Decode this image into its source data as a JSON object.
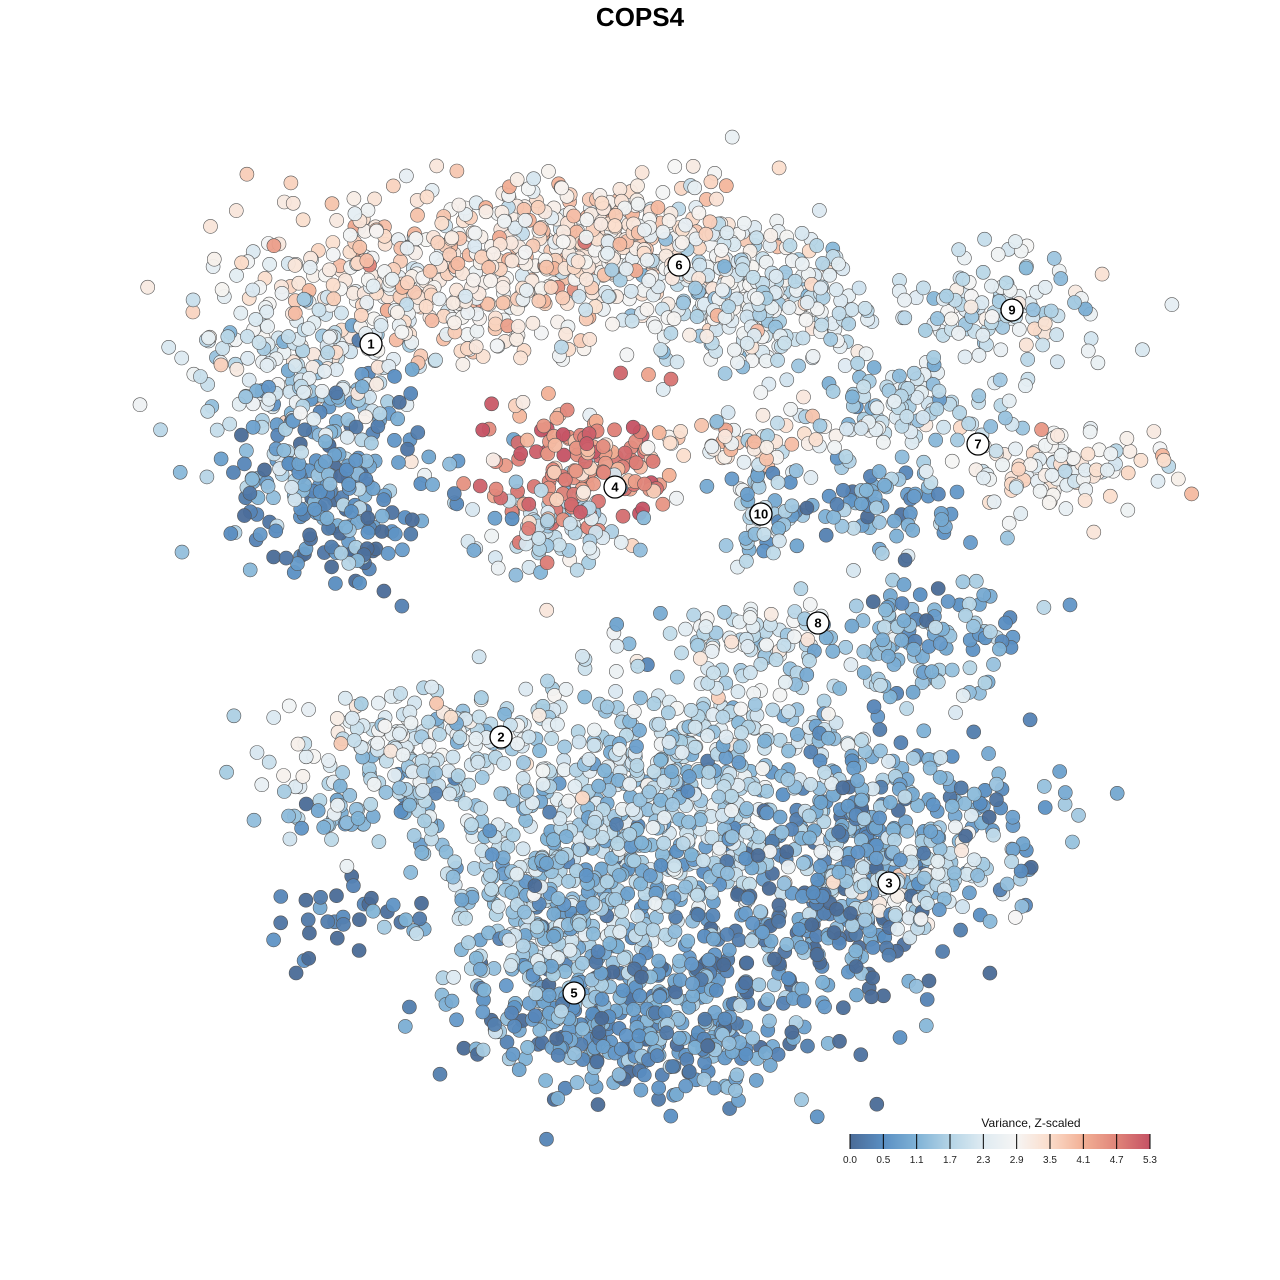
{
  "chart_data": {
    "type": "scatter",
    "title": "COPS4",
    "xlabel": "",
    "ylabel": "",
    "xlim": [
      -45,
      45
    ],
    "ylim": [
      -46,
      46
    ],
    "grid": false,
    "note": "t-SNE embedding; each blob = [x_center, y_center, x_sd, y_sd, n_points, mean_value] in embedding units",
    "legend": {
      "title": "Variance, Z-scaled",
      "placement": "bottom-right",
      "ticks": [
        "0.0",
        "0.5",
        "1.1",
        "1.7",
        "2.3",
        "2.9",
        "3.5",
        "4.1",
        "4.7",
        "5.3"
      ],
      "range": [
        0,
        5.3
      ],
      "colors": [
        "#4a6b97",
        "#5a8fc3",
        "#7fb2d6",
        "#b4d4e6",
        "#dfebf2",
        "#f6f5f4",
        "#fbdcca",
        "#f2b095",
        "#e08479",
        "#c55264"
      ]
    },
    "clusters": [
      {
        "label": "1",
        "x": -26.9,
        "y": 29.6
      },
      {
        "label": "2",
        "x": -13.9,
        "y": -9.7
      },
      {
        "label": "3",
        "x": 24.9,
        "y": -24.3
      },
      {
        "label": "4",
        "x": -2.5,
        "y": 15.3
      },
      {
        "label": "5",
        "x": -6.6,
        "y": -35.3
      },
      {
        "label": "6",
        "x": 3.9,
        "y": 37.5
      },
      {
        "label": "7",
        "x": 33.8,
        "y": 19.6
      },
      {
        "label": "8",
        "x": 17.8,
        "y": 1.7
      },
      {
        "label": "9",
        "x": 37.2,
        "y": 33.0
      },
      {
        "label": "10",
        "x": 12.1,
        "y": 12.6
      }
    ],
    "blobs": [
      [
        -19,
        36,
        11,
        4.5,
        400,
        3.2
      ],
      [
        -4,
        40,
        8,
        3,
        250,
        3.3
      ],
      [
        8,
        36,
        7,
        3.5,
        200,
        2.4
      ],
      [
        -34,
        28,
        6,
        4,
        150,
        2.3
      ],
      [
        -31,
        18,
        5,
        5,
        200,
        1.0
      ],
      [
        -29,
        10,
        4,
        2.5,
        60,
        0.3
      ],
      [
        16,
        33,
        4,
        3,
        100,
        2.2
      ],
      [
        -6,
        17,
        5,
        3.5,
        150,
        4.6
      ],
      [
        -8,
        11,
        4,
        2.5,
        80,
        2.0
      ],
      [
        35,
        33,
        6,
        3,
        120,
        2.3
      ],
      [
        26,
        23,
        5,
        2.5,
        100,
        1.9
      ],
      [
        41,
        17,
        5,
        2,
        100,
        3.0
      ],
      [
        10,
        20,
        5,
        1.5,
        60,
        3.2
      ],
      [
        12,
        13,
        2,
        2.5,
        40,
        1.6
      ],
      [
        24,
        13,
        5,
        2.5,
        80,
        1.0
      ],
      [
        28,
        0,
        5,
        3,
        120,
        1.2
      ],
      [
        10,
        0,
        5,
        2,
        60,
        2.4
      ],
      [
        -22,
        -10,
        7,
        2.5,
        150,
        2.4
      ],
      [
        -26,
        -17,
        5,
        2,
        80,
        1.6
      ],
      [
        -29,
        -28,
        4,
        2,
        30,
        0.2
      ],
      [
        4,
        -12,
        11,
        5,
        400,
        1.9
      ],
      [
        -2,
        -22,
        10,
        4,
        300,
        1.6
      ],
      [
        24,
        -19,
        8,
        5,
        300,
        0.9
      ],
      [
        26,
        -24,
        5,
        3,
        120,
        2.3
      ],
      [
        -8,
        -28,
        6,
        4,
        200,
        1.5
      ],
      [
        0,
        -38,
        9,
        4,
        400,
        0.8
      ],
      [
        16,
        -30,
        6,
        4,
        150,
        0.5
      ]
    ]
  }
}
